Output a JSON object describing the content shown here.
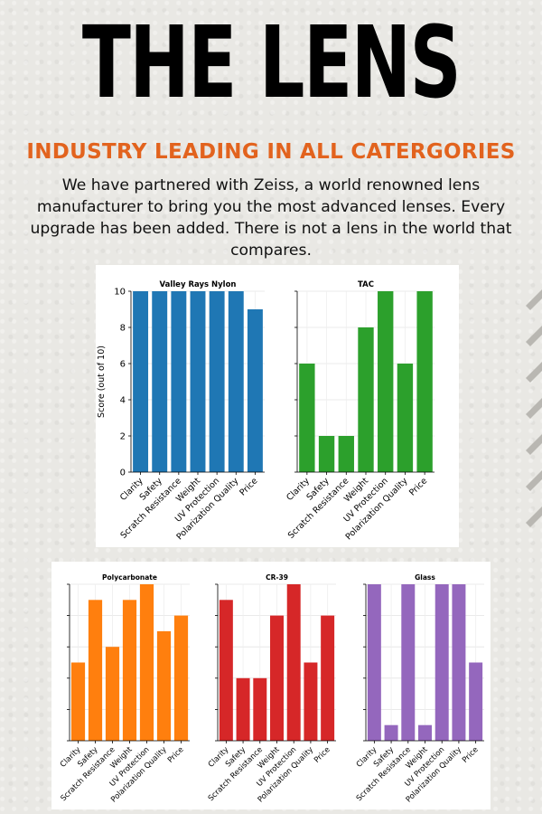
{
  "header": {
    "title": "THE LENS",
    "subtitle": "INDUSTRY LEADING IN ALL CATERGORIES",
    "body": "We have partnered with Zeiss, a world renowned lens manufacturer to bring you the most advanced lenses. Every upgrade has been added. There is not a lens in the world that compares."
  },
  "colors": {
    "accent": "#e2631e",
    "blue": "#1f77b4",
    "green": "#2ca02c",
    "orange": "#ff7f0e",
    "red": "#d62728",
    "purple": "#9467bd"
  },
  "chart_data": [
    {
      "type": "bar",
      "title": "Valley Rays Nylon",
      "ylabel": "Score (out of 10)",
      "ylim": [
        0,
        10
      ],
      "yticks": [
        0,
        2,
        4,
        6,
        8,
        10
      ],
      "show_yticks": true,
      "color": "#1f77b4",
      "categories": [
        "Clarity",
        "Safety",
        "Scratch Resistance",
        "Weight",
        "UV Protection",
        "Polarization Quality",
        "Price"
      ],
      "values": [
        10,
        10,
        10,
        10,
        10,
        10,
        9
      ]
    },
    {
      "type": "bar",
      "title": "TAC",
      "ylabel": "",
      "ylim": [
        0,
        10
      ],
      "yticks": [],
      "show_yticks": false,
      "color": "#2ca02c",
      "categories": [
        "Clarity",
        "Safety",
        "Scratch Resistance",
        "Weight",
        "UV Protection",
        "Polarization Quality",
        "Price"
      ],
      "values": [
        6,
        2,
        2,
        8,
        10,
        6,
        10
      ]
    },
    {
      "type": "bar",
      "title": "Polycarbonate",
      "ylabel": "",
      "ylim": [
        0,
        10
      ],
      "yticks": [],
      "show_yticks": false,
      "color": "#ff7f0e",
      "categories": [
        "Clarity",
        "Safety",
        "Scratch Resistance",
        "Weight",
        "UV Protection",
        "Polarization Quality",
        "Price"
      ],
      "values": [
        5,
        9,
        6,
        9,
        10,
        7,
        8
      ]
    },
    {
      "type": "bar",
      "title": "CR-39",
      "ylabel": "",
      "ylim": [
        0,
        10
      ],
      "yticks": [],
      "show_yticks": false,
      "color": "#d62728",
      "categories": [
        "Clarity",
        "Safety",
        "Scratch Resistance",
        "Weight",
        "UV Protection",
        "Polarization Quality",
        "Price"
      ],
      "values": [
        9,
        4,
        4,
        8,
        10,
        5,
        8
      ]
    },
    {
      "type": "bar",
      "title": "Glass",
      "ylabel": "",
      "ylim": [
        0,
        10
      ],
      "yticks": [],
      "show_yticks": false,
      "color": "#9467bd",
      "categories": [
        "Clarity",
        "Safety",
        "Scratch Resistance",
        "Weight",
        "UV Protection",
        "Polarization Quality",
        "Price"
      ],
      "values": [
        10,
        1,
        10,
        1,
        10,
        10,
        5
      ]
    }
  ]
}
